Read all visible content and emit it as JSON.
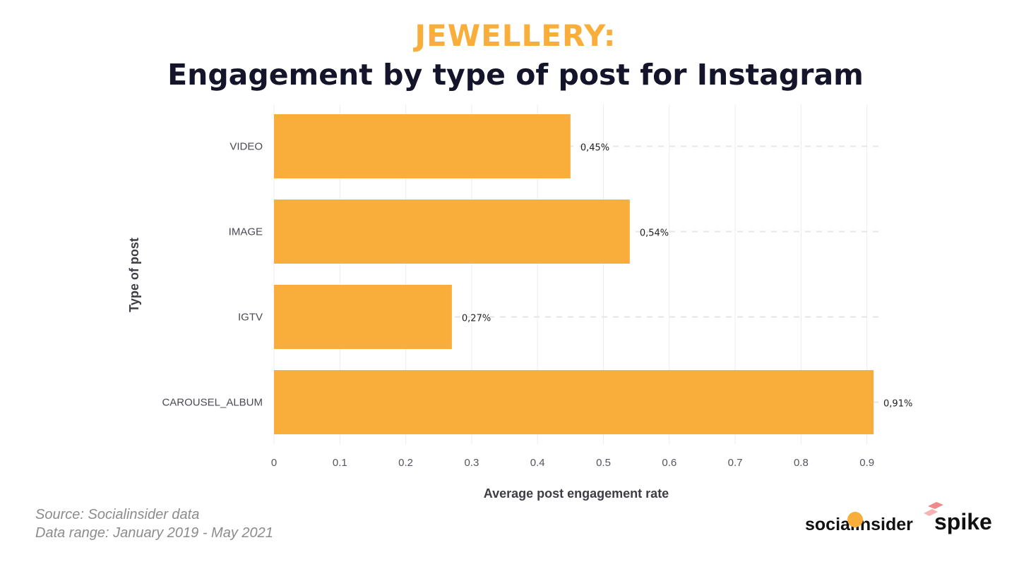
{
  "header": {
    "kicker": "JEWELLERY:",
    "title": "Engagement by type of post for Instagram"
  },
  "chart_data": {
    "type": "bar",
    "orientation": "horizontal",
    "categories": [
      "VIDEO",
      "IMAGE",
      "IGTV",
      "CAROUSEL_ALBUM"
    ],
    "values": [
      0.45,
      0.54,
      0.27,
      0.91
    ],
    "value_labels": [
      "0,45%",
      "0,54%",
      "0,27%",
      "0,91%"
    ],
    "xlabel": "Average post engagement rate",
    "ylabel": "Type of post",
    "xlim": [
      0,
      0.92
    ],
    "xticks": [
      0,
      0.1,
      0.2,
      0.3,
      0.4,
      0.5,
      0.6,
      0.7,
      0.8,
      0.9
    ],
    "xtick_labels": [
      "0",
      "0.1",
      "0.2",
      "0.3",
      "0.4",
      "0.5",
      "0.6",
      "0.7",
      "0.8",
      "0.9"
    ],
    "grid": true,
    "bar_color": "#f9ae3c"
  },
  "footer": {
    "source": "Source: Socialinsider data",
    "range": "Data range: January 2019 - May 2021",
    "logo_socialinsider": "socialinsider",
    "logo_spike": "spike"
  }
}
